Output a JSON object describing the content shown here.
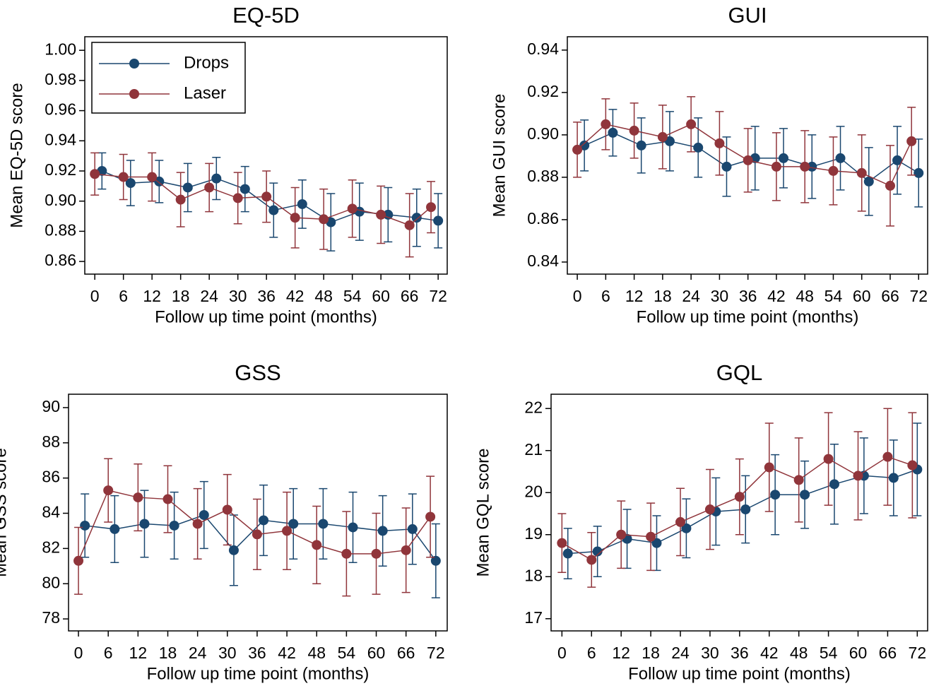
{
  "chart_data": [
    {
      "type": "line",
      "title": "EQ-5D",
      "x_label": "Follow up time point (months)",
      "y_label": "Mean EQ-5D score",
      "xlim": [
        -2.1,
        73.9
      ],
      "ylim": [
        0.8516,
        1.009
      ],
      "xticks": [
        0,
        6,
        12,
        18,
        24,
        30,
        36,
        42,
        48,
        54,
        60,
        66,
        72
      ],
      "yticks": [
        0.86,
        0.88,
        {
          "value": 0.9,
          "label": "0.90"
        },
        0.92,
        0.94,
        0.96,
        0.98,
        {
          "value": 1.0,
          "label": "1.00"
        }
      ],
      "legend": "top-left",
      "series": [
        {
          "name": "Drops",
          "color": "#1a476f",
          "x": [
            1.5,
            7.5,
            13.5,
            19.5,
            25.5,
            31.5,
            37.5,
            43.5,
            49.5,
            55.5,
            61.5,
            67.5,
            72
          ],
          "values": [
            0.92,
            0.912,
            0.913,
            0.909,
            0.915,
            0.908,
            0.894,
            0.898,
            0.886,
            0.893,
            0.891,
            0.889,
            0.887
          ],
          "errors": [
            0.012,
            0.015,
            0.014,
            0.016,
            0.014,
            0.015,
            0.018,
            0.016,
            0.019,
            0.019,
            0.018,
            0.019,
            0.018
          ]
        },
        {
          "name": "Laser",
          "color": "#90353b",
          "x": [
            0,
            6,
            12,
            18,
            24,
            30,
            36,
            42,
            48,
            54,
            60,
            66,
            70.5
          ],
          "values": [
            0.918,
            0.916,
            0.916,
            0.901,
            0.909,
            0.902,
            0.903,
            0.889,
            0.888,
            0.895,
            0.891,
            0.884,
            0.896
          ],
          "errors": [
            0.014,
            0.015,
            0.016,
            0.018,
            0.016,
            0.017,
            0.017,
            0.02,
            0.02,
            0.019,
            0.019,
            0.021,
            0.017
          ]
        }
      ]
    },
    {
      "type": "line",
      "title": "GUI",
      "x_label": "Follow up time point (months)",
      "y_label": "Mean GUI score",
      "xlim": [
        -2.1,
        73.9
      ],
      "ylim": [
        0.8343,
        0.9463
      ],
      "xticks": [
        0,
        6,
        12,
        18,
        24,
        30,
        36,
        42,
        48,
        54,
        60,
        66,
        72
      ],
      "yticks": [
        0.84,
        0.86,
        0.88,
        {
          "value": 0.9,
          "label": "0.90"
        },
        0.92,
        0.94
      ],
      "series": [
        {
          "name": "Drops",
          "color": "#1a476f",
          "x": [
            1.5,
            7.5,
            13.5,
            19.5,
            25.5,
            31.5,
            37.5,
            43.5,
            49.5,
            55.5,
            61.5,
            67.5,
            72
          ],
          "values": [
            0.895,
            0.901,
            0.895,
            0.897,
            0.894,
            0.885,
            0.889,
            0.889,
            0.885,
            0.889,
            0.878,
            0.888,
            0.882
          ],
          "errors": [
            0.012,
            0.011,
            0.013,
            0.014,
            0.014,
            0.014,
            0.015,
            0.014,
            0.015,
            0.015,
            0.016,
            0.016,
            0.016
          ]
        },
        {
          "name": "Laser",
          "color": "#90353b",
          "x": [
            0,
            6,
            12,
            18,
            24,
            30,
            36,
            42,
            48,
            54,
            60,
            66,
            70.5
          ],
          "values": [
            0.893,
            0.905,
            0.902,
            0.899,
            0.905,
            0.896,
            0.888,
            0.885,
            0.885,
            0.883,
            0.882,
            0.876,
            0.897
          ],
          "errors": [
            0.013,
            0.012,
            0.013,
            0.015,
            0.013,
            0.015,
            0.015,
            0.016,
            0.017,
            0.016,
            0.018,
            0.019,
            0.016
          ]
        }
      ]
    },
    {
      "type": "line",
      "title": "GSS",
      "x_label": "Follow up time point (months)",
      "y_label": "Mean GSS score",
      "xlim": [
        -2,
        74.3
      ],
      "ylim": [
        77.32,
        90.76
      ],
      "xticks": [
        0,
        6,
        12,
        18,
        24,
        30,
        36,
        42,
        48,
        54,
        60,
        66,
        72
      ],
      "yticks": [
        78,
        80,
        82,
        84,
        86,
        88,
        90
      ],
      "series": [
        {
          "name": "Drops",
          "color": "#1a476f",
          "x": [
            1.3,
            7.3,
            13.3,
            19.3,
            25.3,
            31.3,
            37.3,
            43.3,
            49.3,
            55.3,
            61.3,
            67.3,
            72
          ],
          "values": [
            83.3,
            83.1,
            83.4,
            83.3,
            83.9,
            81.9,
            83.6,
            83.4,
            83.4,
            83.2,
            83.0,
            83.1,
            81.3
          ],
          "errors": [
            1.8,
            1.9,
            1.9,
            1.9,
            1.9,
            2.0,
            2.0,
            2.0,
            2.0,
            2.0,
            2.0,
            2.0,
            2.1
          ]
        },
        {
          "name": "Laser",
          "color": "#90353b",
          "x": [
            0,
            6,
            12,
            18,
            24,
            30,
            36,
            42,
            48,
            54,
            60,
            66,
            70.9
          ],
          "values": [
            81.3,
            85.3,
            84.9,
            84.8,
            83.4,
            84.2,
            82.8,
            83.0,
            82.2,
            81.7,
            81.7,
            81.9,
            83.8
          ],
          "errors": [
            1.9,
            1.8,
            1.9,
            1.9,
            2.0,
            2.0,
            2.0,
            2.2,
            2.2,
            2.4,
            2.3,
            2.4,
            2.3
          ]
        }
      ]
    },
    {
      "type": "line",
      "title": "GQL",
      "x_label": "Follow up time point (months)",
      "y_label": "Mean GQL score",
      "xlim": [
        -2.2,
        74.1
      ],
      "ylim": [
        16.71,
        22.34
      ],
      "xticks": [
        0,
        6,
        12,
        18,
        24,
        30,
        36,
        42,
        48,
        54,
        60,
        66,
        72
      ],
      "yticks": [
        17,
        18,
        19,
        20,
        21,
        22
      ],
      "series": [
        {
          "name": "Drops",
          "color": "#1a476f",
          "x": [
            1.2,
            7.2,
            13.2,
            19.2,
            25.2,
            31.2,
            37.2,
            43.2,
            49.2,
            55.2,
            61.2,
            67.2,
            72
          ],
          "values": [
            18.55,
            18.6,
            18.9,
            18.8,
            19.15,
            19.55,
            19.6,
            19.95,
            19.95,
            20.2,
            20.4,
            20.35,
            20.55
          ],
          "errors": [
            0.6,
            0.6,
            0.7,
            0.65,
            0.7,
            0.8,
            0.8,
            0.95,
            0.8,
            0.95,
            0.9,
            0.9,
            1.1
          ]
        },
        {
          "name": "Laser",
          "color": "#90353b",
          "x": [
            0,
            6,
            12,
            18,
            24,
            30,
            36,
            42,
            48,
            54,
            60,
            66,
            71
          ],
          "values": [
            18.8,
            18.4,
            19.0,
            18.95,
            19.3,
            19.6,
            19.9,
            20.6,
            20.3,
            20.8,
            20.4,
            20.85,
            20.65
          ],
          "errors": [
            0.7,
            0.65,
            0.8,
            0.8,
            0.8,
            0.95,
            0.9,
            1.05,
            1.0,
            1.1,
            1.05,
            1.15,
            1.25
          ]
        }
      ]
    }
  ]
}
